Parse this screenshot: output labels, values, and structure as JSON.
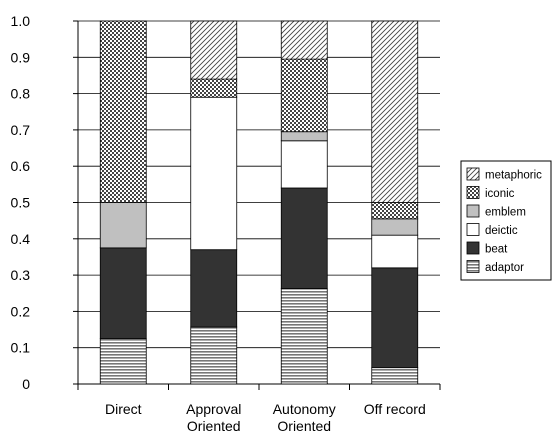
{
  "chart_data": {
    "type": "bar",
    "stacked": true,
    "normalized": true,
    "categories": [
      [
        "Direct"
      ],
      [
        "Approval",
        "Oriented"
      ],
      [
        "Autonomy",
        "Oriented"
      ],
      [
        "Off record"
      ]
    ],
    "ylim": [
      0,
      1.0
    ],
    "yticks": [
      "0",
      "0.1",
      "0.2",
      "0.3",
      "0.4",
      "0.5",
      "0.6",
      "0.7",
      "0.8",
      "0.9",
      "1.0"
    ],
    "grid": true,
    "legend_position": "right",
    "series": [
      {
        "name": "adaptor",
        "pattern": "horizontal-stripes",
        "values": [
          0.125,
          0.157,
          0.263,
          0.045
        ]
      },
      {
        "name": "beat",
        "pattern": "solid-dark",
        "values": [
          0.25,
          0.213,
          0.277,
          0.275
        ]
      },
      {
        "name": "deictic",
        "pattern": "white",
        "values": [
          0.0,
          0.42,
          0.13,
          0.09
        ]
      },
      {
        "name": "emblem",
        "pattern": "light-gray",
        "values": [
          0.125,
          0.0,
          0.025,
          0.045
        ]
      },
      {
        "name": "iconic",
        "pattern": "checker",
        "values": [
          0.5,
          0.05,
          0.2,
          0.045
        ]
      },
      {
        "name": "metaphoric",
        "pattern": "diagonal-hatch",
        "values": [
          0.0,
          0.16,
          0.105,
          0.5
        ]
      }
    ],
    "legend_order": [
      "metaphoric",
      "iconic",
      "emblem",
      "deictic",
      "beat",
      "adaptor"
    ],
    "colors": {
      "beat": "#333333",
      "emblem": "#c0c0c0",
      "deictic": "#ffffff",
      "grid": "#000000"
    }
  }
}
